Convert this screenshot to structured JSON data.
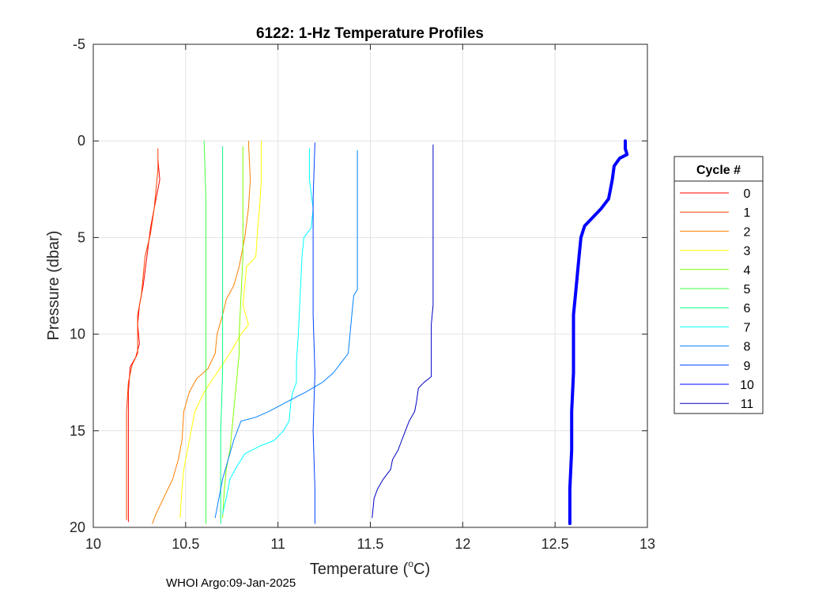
{
  "chart_data": {
    "type": "line",
    "title": "6122: 1-Hz Temperature Profiles",
    "xlabel_main": "Temperature (",
    "xlabel_sup": "o",
    "xlabel_end": "C)",
    "ylabel": "Pressure (dbar)",
    "xlim": [
      10,
      13
    ],
    "ylim": [
      -5,
      20
    ],
    "y_reversed": true,
    "xticks": [
      10,
      10.5,
      11,
      11.5,
      12,
      12.5,
      13
    ],
    "xtick_labels": [
      "10",
      "10.5",
      "11",
      "11.5",
      "12",
      "12.5",
      "13"
    ],
    "yticks": [
      -5,
      0,
      5,
      10,
      15,
      20
    ],
    "ytick_labels": [
      "-5",
      "0",
      "5",
      "10",
      "15",
      "20"
    ],
    "grid": true,
    "legend": {
      "title": "Cycle #",
      "position": "right"
    },
    "footer": "WHOI Argo:09-Jan-2025",
    "series": [
      {
        "name": "0",
        "color": "#ff0000",
        "width": 1,
        "points": [
          [
            10.35,
            1.0
          ],
          [
            10.36,
            2.0
          ],
          [
            10.34,
            3.0
          ],
          [
            10.31,
            4.5
          ],
          [
            10.29,
            6.0
          ],
          [
            10.27,
            7.5
          ],
          [
            10.25,
            8.5
          ],
          [
            10.24,
            9.5
          ],
          [
            10.25,
            10.5
          ],
          [
            10.23,
            11.2
          ],
          [
            10.2,
            11.7
          ],
          [
            10.19,
            13.0
          ],
          [
            10.19,
            16.0
          ],
          [
            10.19,
            19.7
          ]
        ]
      },
      {
        "name": "1",
        "color": "#ff4000",
        "width": 1,
        "points": [
          [
            10.35,
            0.4
          ],
          [
            10.35,
            1.5
          ],
          [
            10.34,
            2.5
          ],
          [
            10.33,
            3.5
          ],
          [
            10.31,
            4.8
          ],
          [
            10.28,
            6.0
          ],
          [
            10.27,
            7.0
          ],
          [
            10.26,
            8.0
          ],
          [
            10.24,
            9.0
          ],
          [
            10.24,
            10.0
          ],
          [
            10.24,
            11.0
          ],
          [
            10.21,
            11.6
          ],
          [
            10.19,
            12.5
          ],
          [
            10.18,
            14.0
          ],
          [
            10.18,
            17.0
          ],
          [
            10.18,
            19.6
          ]
        ]
      },
      {
        "name": "2",
        "color": "#ff8000",
        "width": 1,
        "points": [
          [
            10.84,
            0.0
          ],
          [
            10.85,
            2.0
          ],
          [
            10.84,
            3.5
          ],
          [
            10.82,
            5.0
          ],
          [
            10.79,
            6.5
          ],
          [
            10.76,
            7.5
          ],
          [
            10.72,
            8.2
          ],
          [
            10.7,
            9.0
          ],
          [
            10.67,
            10.0
          ],
          [
            10.66,
            11.0
          ],
          [
            10.62,
            11.8
          ],
          [
            10.56,
            12.3
          ],
          [
            10.52,
            13.0
          ],
          [
            10.49,
            14.0
          ],
          [
            10.48,
            15.5
          ],
          [
            10.46,
            16.5
          ],
          [
            10.43,
            17.5
          ],
          [
            10.38,
            18.5
          ],
          [
            10.34,
            19.3
          ],
          [
            10.32,
            19.8
          ]
        ]
      },
      {
        "name": "3",
        "color": "#ffff00",
        "width": 1,
        "points": [
          [
            10.91,
            0.0
          ],
          [
            10.91,
            2.0
          ],
          [
            10.9,
            3.5
          ],
          [
            10.89,
            4.5
          ],
          [
            10.88,
            6.0
          ],
          [
            10.83,
            6.5
          ],
          [
            10.82,
            7.5
          ],
          [
            10.81,
            8.5
          ],
          [
            10.84,
            9.5
          ],
          [
            10.8,
            10.0
          ],
          [
            10.74,
            11.0
          ],
          [
            10.67,
            12.0
          ],
          [
            10.6,
            13.0
          ],
          [
            10.55,
            14.0
          ],
          [
            10.53,
            15.0
          ],
          [
            10.51,
            16.0
          ],
          [
            10.49,
            17.0
          ],
          [
            10.48,
            18.0
          ],
          [
            10.47,
            19.5
          ]
        ]
      },
      {
        "name": "4",
        "color": "#80ff00",
        "width": 1,
        "points": [
          [
            10.81,
            0.3
          ],
          [
            10.81,
            3.0
          ],
          [
            10.81,
            6.0
          ],
          [
            10.8,
            8.0
          ],
          [
            10.79,
            10.0
          ],
          [
            10.79,
            11.0
          ],
          [
            10.78,
            12.0
          ],
          [
            10.77,
            13.0
          ],
          [
            10.76,
            14.0
          ],
          [
            10.75,
            15.0
          ],
          [
            10.74,
            16.0
          ],
          [
            10.72,
            17.0
          ],
          [
            10.71,
            18.0
          ],
          [
            10.7,
            19.5
          ]
        ]
      },
      {
        "name": "5",
        "color": "#40ff40",
        "width": 1,
        "points": [
          [
            10.6,
            0.0
          ],
          [
            10.61,
            3.0
          ],
          [
            10.61,
            6.0
          ],
          [
            10.61,
            9.0
          ],
          [
            10.61,
            12.0
          ],
          [
            10.61,
            15.0
          ],
          [
            10.61,
            18.0
          ],
          [
            10.61,
            19.8
          ]
        ]
      },
      {
        "name": "6",
        "color": "#00ff80",
        "width": 1,
        "points": [
          [
            10.7,
            0.3
          ],
          [
            10.7,
            3.0
          ],
          [
            10.7,
            6.0
          ],
          [
            10.7,
            9.0
          ],
          [
            10.7,
            12.0
          ],
          [
            10.69,
            15.0
          ],
          [
            10.69,
            18.0
          ],
          [
            10.69,
            19.8
          ]
        ]
      },
      {
        "name": "7",
        "color": "#00ffff",
        "width": 1,
        "points": [
          [
            11.17,
            0.4
          ],
          [
            11.17,
            2.0
          ],
          [
            11.19,
            3.5
          ],
          [
            11.18,
            4.5
          ],
          [
            11.14,
            5.0
          ],
          [
            11.13,
            6.0
          ],
          [
            11.12,
            8.0
          ],
          [
            11.11,
            10.0
          ],
          [
            11.1,
            11.5
          ],
          [
            11.1,
            12.5
          ],
          [
            11.08,
            13.0
          ],
          [
            11.07,
            13.5
          ],
          [
            11.06,
            14.5
          ],
          [
            11.03,
            15.0
          ],
          [
            10.98,
            15.5
          ],
          [
            10.9,
            15.8
          ],
          [
            10.82,
            16.2
          ],
          [
            10.78,
            16.8
          ],
          [
            10.74,
            17.5
          ],
          [
            10.72,
            18.5
          ],
          [
            10.7,
            19.3
          ]
        ]
      },
      {
        "name": "8",
        "color": "#0080ff",
        "width": 1,
        "points": [
          [
            11.43,
            0.5
          ],
          [
            11.43,
            3.0
          ],
          [
            11.43,
            5.0
          ],
          [
            11.43,
            7.7
          ],
          [
            11.41,
            8.0
          ],
          [
            11.4,
            9.0
          ],
          [
            11.39,
            10.0
          ],
          [
            11.38,
            11.0
          ],
          [
            11.34,
            11.5
          ],
          [
            11.3,
            12.0
          ],
          [
            11.24,
            12.5
          ],
          [
            11.15,
            13.0
          ],
          [
            11.05,
            13.5
          ],
          [
            10.95,
            14.0
          ],
          [
            10.88,
            14.3
          ],
          [
            10.8,
            14.5
          ],
          [
            10.76,
            15.5
          ],
          [
            10.73,
            16.5
          ],
          [
            10.7,
            17.5
          ],
          [
            10.68,
            18.5
          ],
          [
            10.66,
            19.5
          ]
        ]
      },
      {
        "name": "9",
        "color": "#0040ff",
        "width": 1,
        "points": [
          [
            11.2,
            0.1
          ],
          [
            11.19,
            3.0
          ],
          [
            11.19,
            6.0
          ],
          [
            11.19,
            9.0
          ],
          [
            11.2,
            12.0
          ],
          [
            11.19,
            15.0
          ],
          [
            11.2,
            18.0
          ],
          [
            11.2,
            19.8
          ]
        ]
      },
      {
        "name": "10",
        "color": "#0000ff",
        "width": 4,
        "points": [
          [
            12.88,
            0.0
          ],
          [
            12.88,
            0.4
          ],
          [
            12.89,
            0.7
          ],
          [
            12.85,
            0.9
          ],
          [
            12.82,
            1.3
          ],
          [
            12.81,
            2.0
          ],
          [
            12.8,
            2.5
          ],
          [
            12.79,
            3.0
          ],
          [
            12.75,
            3.5
          ],
          [
            12.7,
            4.0
          ],
          [
            12.66,
            4.4
          ],
          [
            12.64,
            5.0
          ],
          [
            12.63,
            6.0
          ],
          [
            12.62,
            7.0
          ],
          [
            12.61,
            8.0
          ],
          [
            12.6,
            9.0
          ],
          [
            12.6,
            10.0
          ],
          [
            12.6,
            12.0
          ],
          [
            12.59,
            14.0
          ],
          [
            12.59,
            16.0
          ],
          [
            12.58,
            18.0
          ],
          [
            12.58,
            19.8
          ]
        ]
      },
      {
        "name": "11",
        "color": "#0000c0",
        "width": 1,
        "points": [
          [
            11.84,
            0.2
          ],
          [
            11.84,
            3.0
          ],
          [
            11.84,
            6.0
          ],
          [
            11.84,
            8.5
          ],
          [
            11.83,
            9.5
          ],
          [
            11.83,
            11.0
          ],
          [
            11.83,
            12.2
          ],
          [
            11.79,
            12.5
          ],
          [
            11.76,
            12.8
          ],
          [
            11.75,
            13.5
          ],
          [
            11.74,
            14.0
          ],
          [
            11.71,
            14.5
          ],
          [
            11.69,
            15.0
          ],
          [
            11.67,
            15.5
          ],
          [
            11.65,
            16.0
          ],
          [
            11.62,
            16.5
          ],
          [
            11.61,
            17.0
          ],
          [
            11.57,
            17.5
          ],
          [
            11.54,
            18.0
          ],
          [
            11.52,
            18.5
          ],
          [
            11.51,
            19.5
          ]
        ]
      }
    ]
  }
}
